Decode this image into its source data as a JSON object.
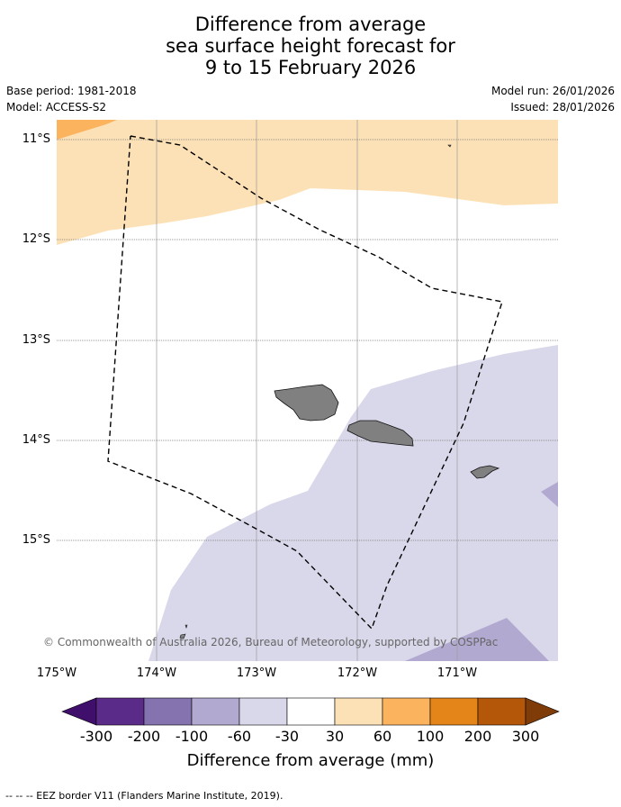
{
  "title": {
    "line1": "Difference from average",
    "line2": "sea surface height forecast for",
    "line3": "9 to 15 February 2026"
  },
  "meta": {
    "base_period": "Base period: 1981-2018",
    "model": "Model: ACCESS-S2",
    "model_run": "Model run: 26/01/2026",
    "issued": "Issued: 28/01/2026"
  },
  "map": {
    "lat_labels": [
      "11°S",
      "12°S",
      "13°S",
      "14°S",
      "15°S"
    ],
    "lon_labels": [
      "175°W",
      "174°W",
      "173°W",
      "172°W",
      "171°W"
    ],
    "copyright": "© Commonwealth of Australia 2026, Bureau of Meteorology, supported by COSPPac"
  },
  "colorbar": {
    "colors": [
      "#3f0f6b",
      "#5b2b8a",
      "#8473ae",
      "#b2a9d0",
      "#d9d8ea",
      "#ffffff",
      "#fde1b6",
      "#fbb35e",
      "#e4851a",
      "#b45709",
      "#7f3b08"
    ],
    "tick_labels": [
      "-300",
      "-200",
      "-100",
      "-60",
      "-30",
      "30",
      "60",
      "100",
      "200",
      "300"
    ],
    "title": "Difference from average (mm)"
  },
  "footer": {
    "legend": "--  --  -- EEZ border V11 (Flanders Marine Institute, 2019)."
  }
}
